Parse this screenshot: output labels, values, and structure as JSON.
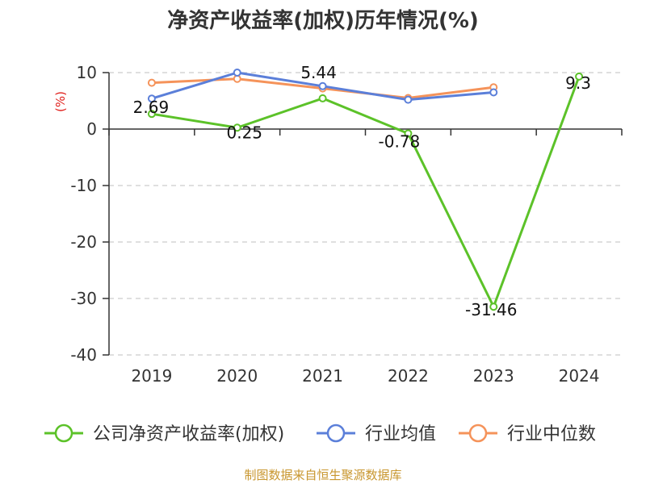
{
  "chart_data": {
    "type": "line",
    "title": "净资产收益率(加权)历年情况(%)",
    "ylabel": "(%)",
    "xlabel": "",
    "categories": [
      "2019",
      "2020",
      "2021",
      "2022",
      "2023",
      "2024"
    ],
    "ylim": [
      -40,
      10
    ],
    "yticks": [
      10,
      0,
      -10,
      -20,
      -30,
      -40
    ],
    "grid": true,
    "legend_position": "bottom",
    "series": [
      {
        "name": "公司净资产收益率(加权)",
        "color": "#5cc229",
        "values": [
          2.69,
          0.25,
          5.44,
          -0.78,
          -31.46,
          9.3
        ],
        "labels": [
          "2.69",
          "0.25",
          "5.44",
          "-0.78",
          "-31.46",
          "9.3"
        ]
      },
      {
        "name": "行业均值",
        "color": "#5b7fd9",
        "values": [
          5.4,
          10.0,
          7.6,
          5.2,
          6.5,
          null
        ]
      },
      {
        "name": "行业中位数",
        "color": "#f5935a",
        "values": [
          8.2,
          8.9,
          7.2,
          5.5,
          7.4,
          null
        ]
      }
    ]
  },
  "source_text": "制图数据来自恒生聚源数据库"
}
